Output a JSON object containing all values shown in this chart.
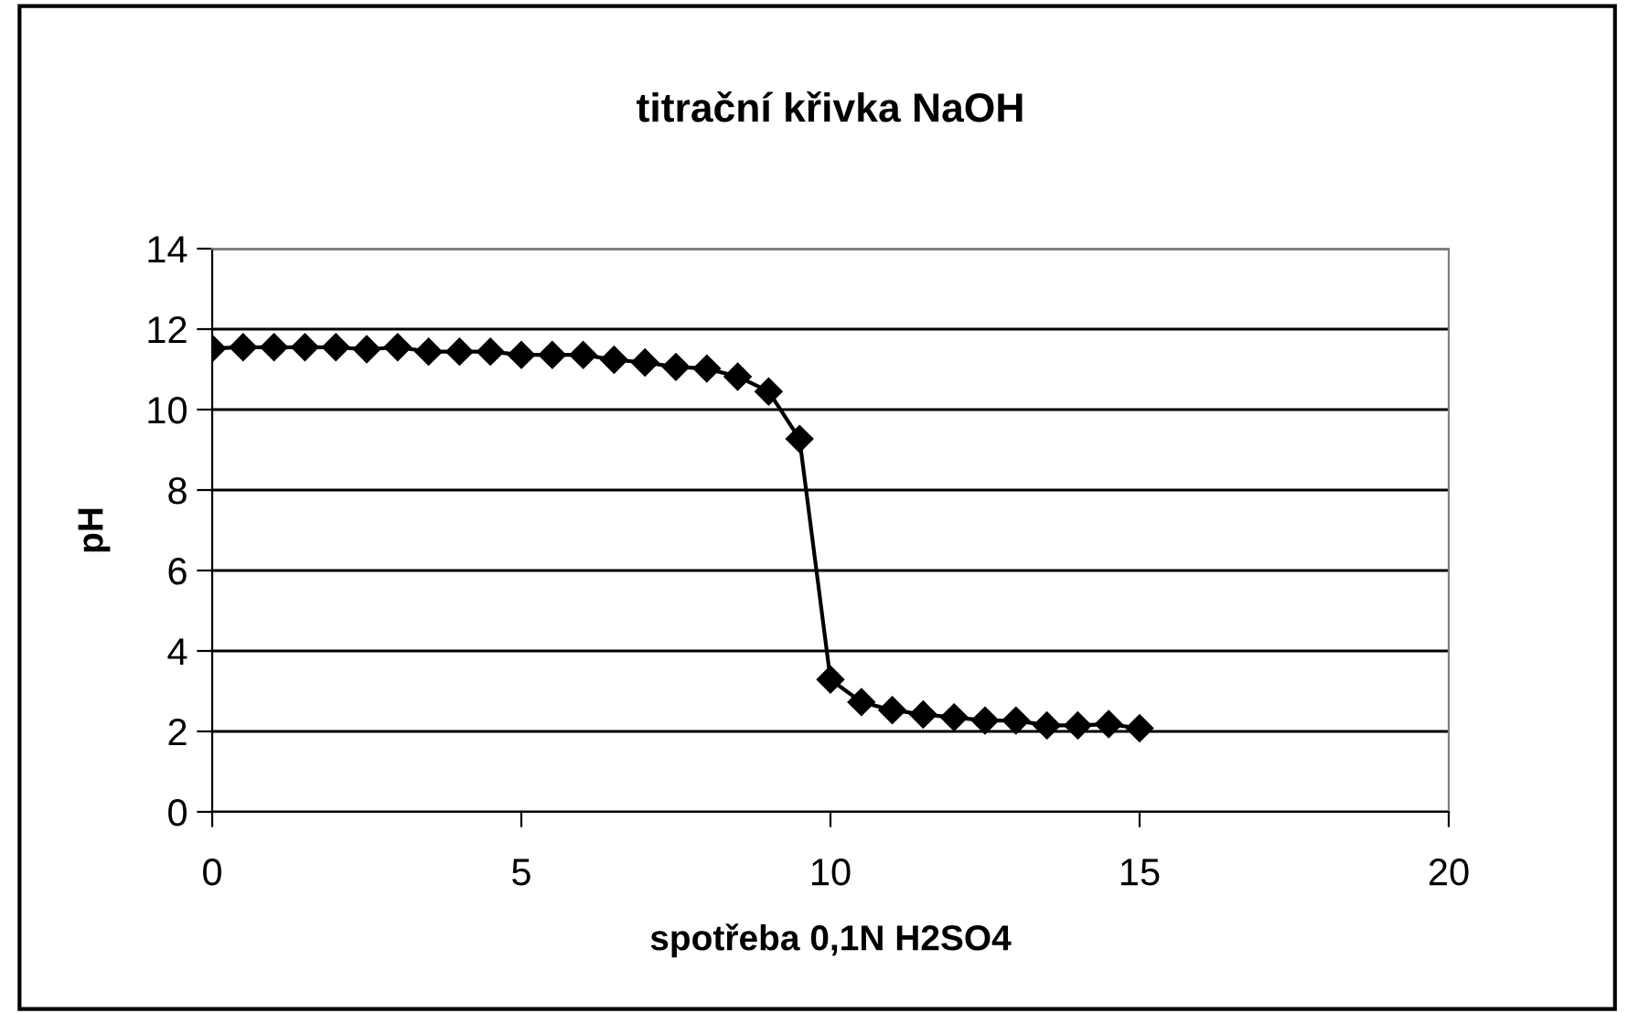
{
  "chart_data": {
    "type": "line",
    "title": "titrační křivka NaOH",
    "xlabel": "spotřeba 0,1N H2SO4",
    "ylabel": "pH",
    "series": [
      {
        "color": "#000000",
        "x": [
          0,
          0.5,
          1,
          1.5,
          2,
          2.5,
          3,
          3.5,
          4,
          4.5,
          5,
          5.5,
          6,
          6.5,
          7,
          7.5,
          8,
          8.5,
          9,
          9.5,
          10,
          10.5,
          11,
          11.5,
          12,
          12.5,
          13,
          13.5,
          14,
          14.5,
          15
        ],
        "values": [
          11.52,
          11.55,
          11.55,
          11.55,
          11.55,
          11.5,
          11.55,
          11.44,
          11.44,
          11.44,
          11.36,
          11.36,
          11.36,
          11.24,
          11.17,
          11.06,
          11.02,
          10.82,
          10.45,
          9.27,
          3.29,
          2.73,
          2.53,
          2.42,
          2.35,
          2.27,
          2.27,
          2.15,
          2.15,
          2.18,
          2.08
        ]
      }
    ],
    "xlim": [
      0,
      20
    ],
    "xticks": [
      0,
      5,
      10,
      15,
      20
    ],
    "ylim": [
      0,
      14
    ],
    "yticks": [
      0,
      2,
      4,
      6,
      8,
      10,
      12,
      14
    ],
    "grid": "y",
    "legend": false,
    "marker": "diamond",
    "line_style": "solid"
  }
}
